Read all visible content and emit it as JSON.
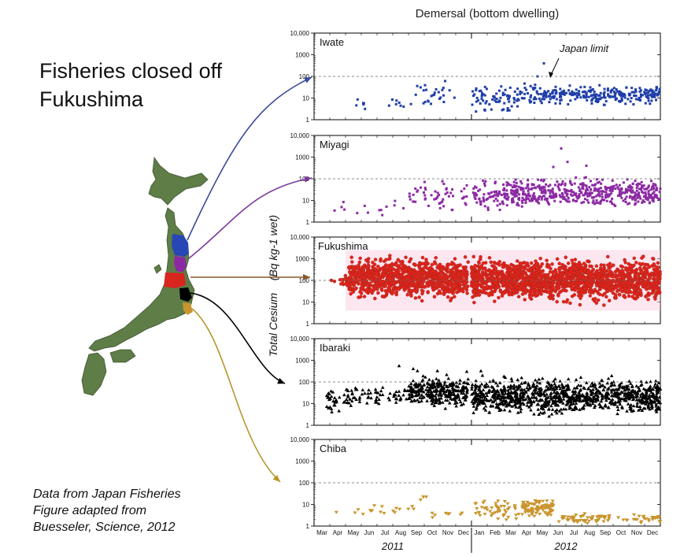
{
  "slide_title": [
    "Fisheries closed off",
    "Fukushima"
  ],
  "credit": [
    "Data from Japan Fisheries",
    "Figure adapted from",
    "Buesseler, Science, 2012"
  ],
  "chart_data": {
    "type": "scatter",
    "title": "Demersal (bottom dwelling)",
    "ylabel": "Total Cesium (Bq kg-1 wet)",
    "ylabel_main": "Total Cesium",
    "ylabel_unit": "(Bq kg-1 wet)",
    "yscale": "log",
    "ylim": [
      1,
      10000
    ],
    "yticks": [
      "1",
      "10",
      "100",
      "1000",
      "10,000"
    ],
    "reference_line": {
      "value": 100,
      "label": "Japan limit"
    },
    "x_months": [
      "Mar",
      "Apr",
      "May",
      "Jun",
      "Jul",
      "Aug",
      "Sep",
      "Oct",
      "Nov",
      "Dec",
      "Jan",
      "Feb",
      "Mar",
      "Apr",
      "May",
      "Jun",
      "Jul",
      "Aug",
      "Sep",
      "Oct",
      "Nov",
      "Dec"
    ],
    "x_years": [
      {
        "label": "2011",
        "start": 0,
        "end": 10
      },
      {
        "label": "2012",
        "start": 10,
        "end": 22
      }
    ],
    "grid": false,
    "panels": [
      {
        "name": "Iwate",
        "color": "#1f3ea8",
        "marker": "square",
        "segments": [
          {
            "from": 2.6,
            "to": 3.4,
            "n": 6,
            "lo": 1.6,
            "hi": 12
          },
          {
            "from": 4.5,
            "to": 6.2,
            "n": 8,
            "lo": 2,
            "hi": 15
          },
          {
            "from": 6.2,
            "to": 9.2,
            "n": 26,
            "lo": 2,
            "hi": 100
          },
          {
            "from": 10,
            "to": 13,
            "n": 70,
            "lo": 1.5,
            "hi": 60
          },
          {
            "from": 13,
            "to": 14.3,
            "n": 30,
            "lo": 3,
            "hi": 90
          },
          {
            "from": 14.3,
            "to": 22,
            "n": 260,
            "lo": 4,
            "hi": 50
          }
        ],
        "extras": [
          [
            14.6,
            400
          ],
          [
            14.2,
            100
          ]
        ]
      },
      {
        "name": "Miyagi",
        "color": "#8b2aa3",
        "marker": "square",
        "segments": [
          {
            "from": 1,
            "to": 6,
            "n": 14,
            "lo": 1.5,
            "hi": 12
          },
          {
            "from": 6,
            "to": 9.8,
            "n": 55,
            "lo": 2,
            "hi": 120
          },
          {
            "from": 10,
            "to": 12,
            "n": 60,
            "lo": 2,
            "hi": 150
          },
          {
            "from": 12,
            "to": 22,
            "n": 520,
            "lo": 3,
            "hi": 150
          }
        ],
        "extras": [
          [
            15.7,
            2500
          ],
          [
            16.1,
            600
          ],
          [
            15.2,
            350
          ],
          [
            17.3,
            400
          ],
          [
            20.4,
            80
          ]
        ]
      },
      {
        "name": "Fukushima",
        "color": "#e3231e",
        "marker": "circle",
        "segments": [
          {
            "from": 1.6,
            "to": 2.2,
            "n": 20,
            "lo": 40,
            "hi": 300
          },
          {
            "from": 2.2,
            "to": 9.8,
            "n": 900,
            "lo": 8,
            "hi": 2000
          },
          {
            "from": 10,
            "to": 22,
            "n": 1500,
            "lo": 6,
            "hi": 1800
          }
        ],
        "extras": [
          [
            1.3,
            90
          ],
          [
            1.1,
            100
          ]
        ]
      },
      {
        "name": "Ibaraki",
        "color": "#000000",
        "marker": "triangle-up",
        "segments": [
          {
            "from": 0.8,
            "to": 2.3,
            "n": 40,
            "lo": 2.5,
            "hi": 60
          },
          {
            "from": 2.3,
            "to": 6,
            "n": 60,
            "lo": 5,
            "hi": 120
          },
          {
            "from": 6,
            "to": 9.8,
            "n": 300,
            "lo": 4,
            "hi": 350
          },
          {
            "from": 10,
            "to": 22,
            "n": 1000,
            "lo": 2,
            "hi": 250
          }
        ],
        "extras": [
          [
            5.4,
            550
          ],
          [
            6.3,
            400
          ],
          [
            9.7,
            300
          ],
          [
            10.6,
            320
          ]
        ]
      },
      {
        "name": "Chiba",
        "color": "#c9952e",
        "marker": "triangle-down",
        "segments": [
          {
            "from": 1.3,
            "to": 6.5,
            "n": 18,
            "lo": 2.5,
            "hi": 12
          },
          {
            "from": 6.7,
            "to": 7.2,
            "n": 4,
            "lo": 10,
            "hi": 35
          },
          {
            "from": 7.5,
            "to": 9.8,
            "n": 8,
            "lo": 2,
            "hi": 8
          },
          {
            "from": 10.2,
            "to": 13.2,
            "n": 50,
            "lo": 1.5,
            "hi": 20
          },
          {
            "from": 13.2,
            "to": 15.2,
            "n": 90,
            "lo": 2,
            "hi": 25
          },
          {
            "from": 15.5,
            "to": 22,
            "n": 90,
            "lo": 1,
            "hi": 5
          }
        ],
        "extras": []
      }
    ]
  },
  "map": {
    "land_color": "#5e7d47",
    "highlight_colors": {
      "Iwate": "#2747b4",
      "Miyagi": "#8b2aa3",
      "Fukushima": "#d8261f",
      "Ibaraki": "#000000",
      "Chiba": "#c9952e"
    },
    "arrow_colors": [
      "#3b4a9a",
      "#7c3a9a",
      "#8a5a2c",
      "#000000",
      "#b8962e"
    ]
  }
}
